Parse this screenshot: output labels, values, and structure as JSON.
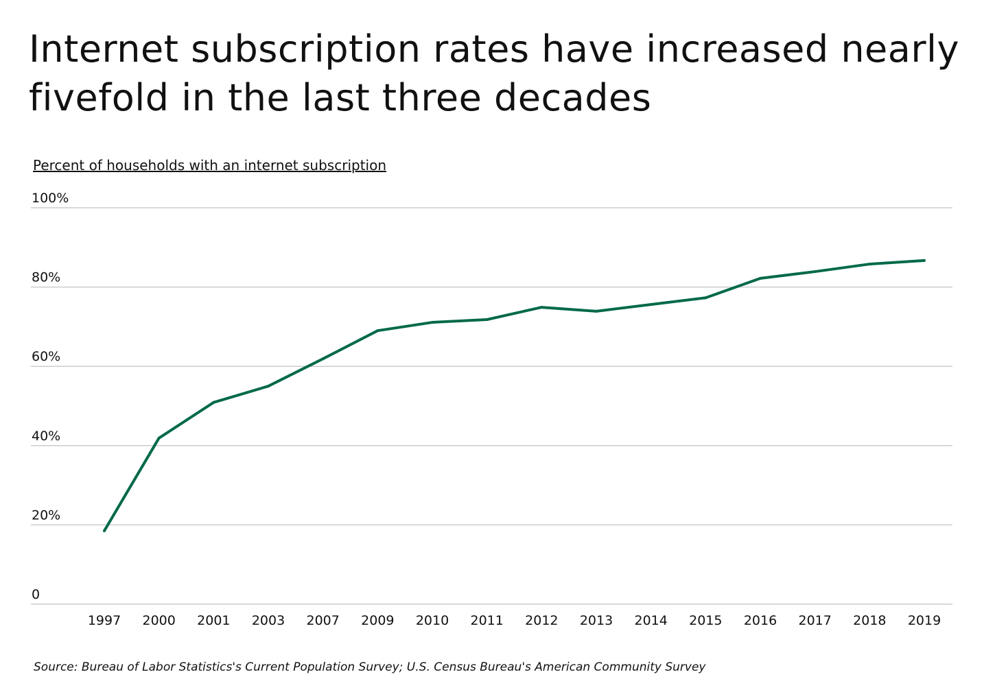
{
  "chart_data": {
    "type": "line",
    "title": "Internet subscription rates have increased nearly fivefold in the last three decades",
    "subtitle": "Percent of households with an internet subscription",
    "source": "Source:  Bureau of Labor Statistics's Current Population Survey; U.S. Census Bureau's American Community Survey",
    "categories": [
      "1997",
      "2000",
      "2001",
      "2003",
      "2007",
      "2009",
      "2010",
      "2011",
      "2012",
      "2013",
      "2014",
      "2015",
      "2016",
      "2017",
      "2018",
      "2019"
    ],
    "values": [
      18.5,
      41.9,
      50.9,
      55.0,
      61.9,
      69.0,
      71.1,
      71.8,
      74.9,
      73.9,
      75.6,
      77.3,
      82.2,
      83.9,
      85.8,
      86.7
    ],
    "ylim": [
      0,
      100
    ],
    "yticks": [
      0,
      20,
      40,
      60,
      80,
      100
    ],
    "ytick_labels": [
      "0",
      "20%",
      "40%",
      "60%",
      "80%",
      "100%"
    ],
    "grid": true,
    "line_color": "#00694A",
    "grid_color": "#CCCCCC"
  }
}
